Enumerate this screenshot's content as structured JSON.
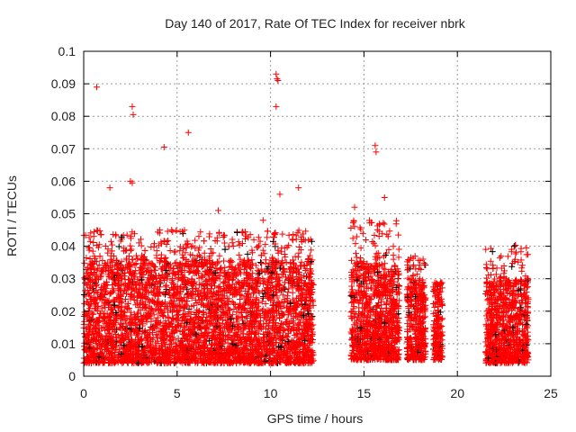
{
  "chart_data": {
    "type": "scatter",
    "title": "Day 140 of 2017, Rate Of TEC Index for receiver nbrk",
    "xlabel": "GPS time / hours",
    "ylabel": "ROTI / TECUs",
    "xlim": [
      0,
      25
    ],
    "ylim": [
      0,
      0.1
    ],
    "xticks": [
      "0",
      "5",
      "10",
      "15",
      "20",
      "25"
    ],
    "yticks": [
      "0",
      "0.01",
      "0.02",
      "0.03",
      "0.04",
      "0.05",
      "0.06",
      "0.07",
      "0.08",
      "0.09",
      "0.1"
    ],
    "grid": true,
    "marker": "+",
    "series_colors": {
      "main": "#ff0000",
      "secondary": "#000000"
    },
    "dense_segments": [
      {
        "x_range": [
          0.0,
          12.3
        ],
        "y_range": [
          0.004,
          0.036
        ],
        "peak": 0.045
      },
      {
        "x_range": [
          14.3,
          16.9
        ],
        "y_range": [
          0.005,
          0.035
        ],
        "peak": 0.048
      },
      {
        "x_range": [
          17.3,
          18.3
        ],
        "y_range": [
          0.005,
          0.03
        ],
        "peak": 0.037
      },
      {
        "x_range": [
          18.7,
          19.2
        ],
        "y_range": [
          0.005,
          0.028
        ],
        "peak": 0.029
      },
      {
        "x_range": [
          21.5,
          23.8
        ],
        "y_range": [
          0.004,
          0.03
        ],
        "peak": 0.041
      }
    ],
    "outliers": [
      [
        0.7,
        0.089
      ],
      [
        2.6,
        0.083
      ],
      [
        2.65,
        0.0805
      ],
      [
        4.3,
        0.0705
      ],
      [
        5.6,
        0.075
      ],
      [
        10.3,
        0.093
      ],
      [
        10.35,
        0.0915
      ],
      [
        10.4,
        0.091
      ],
      [
        10.3,
        0.083
      ],
      [
        15.6,
        0.071
      ],
      [
        15.65,
        0.069
      ],
      [
        2.5,
        0.06
      ],
      [
        2.6,
        0.0595
      ],
      [
        10.5,
        0.056
      ],
      [
        7.2,
        0.051
      ],
      [
        1.4,
        0.058
      ],
      [
        9.6,
        0.048
      ],
      [
        11.5,
        0.058
      ],
      [
        16.1,
        0.055
      ],
      [
        14.5,
        0.052
      ]
    ]
  }
}
